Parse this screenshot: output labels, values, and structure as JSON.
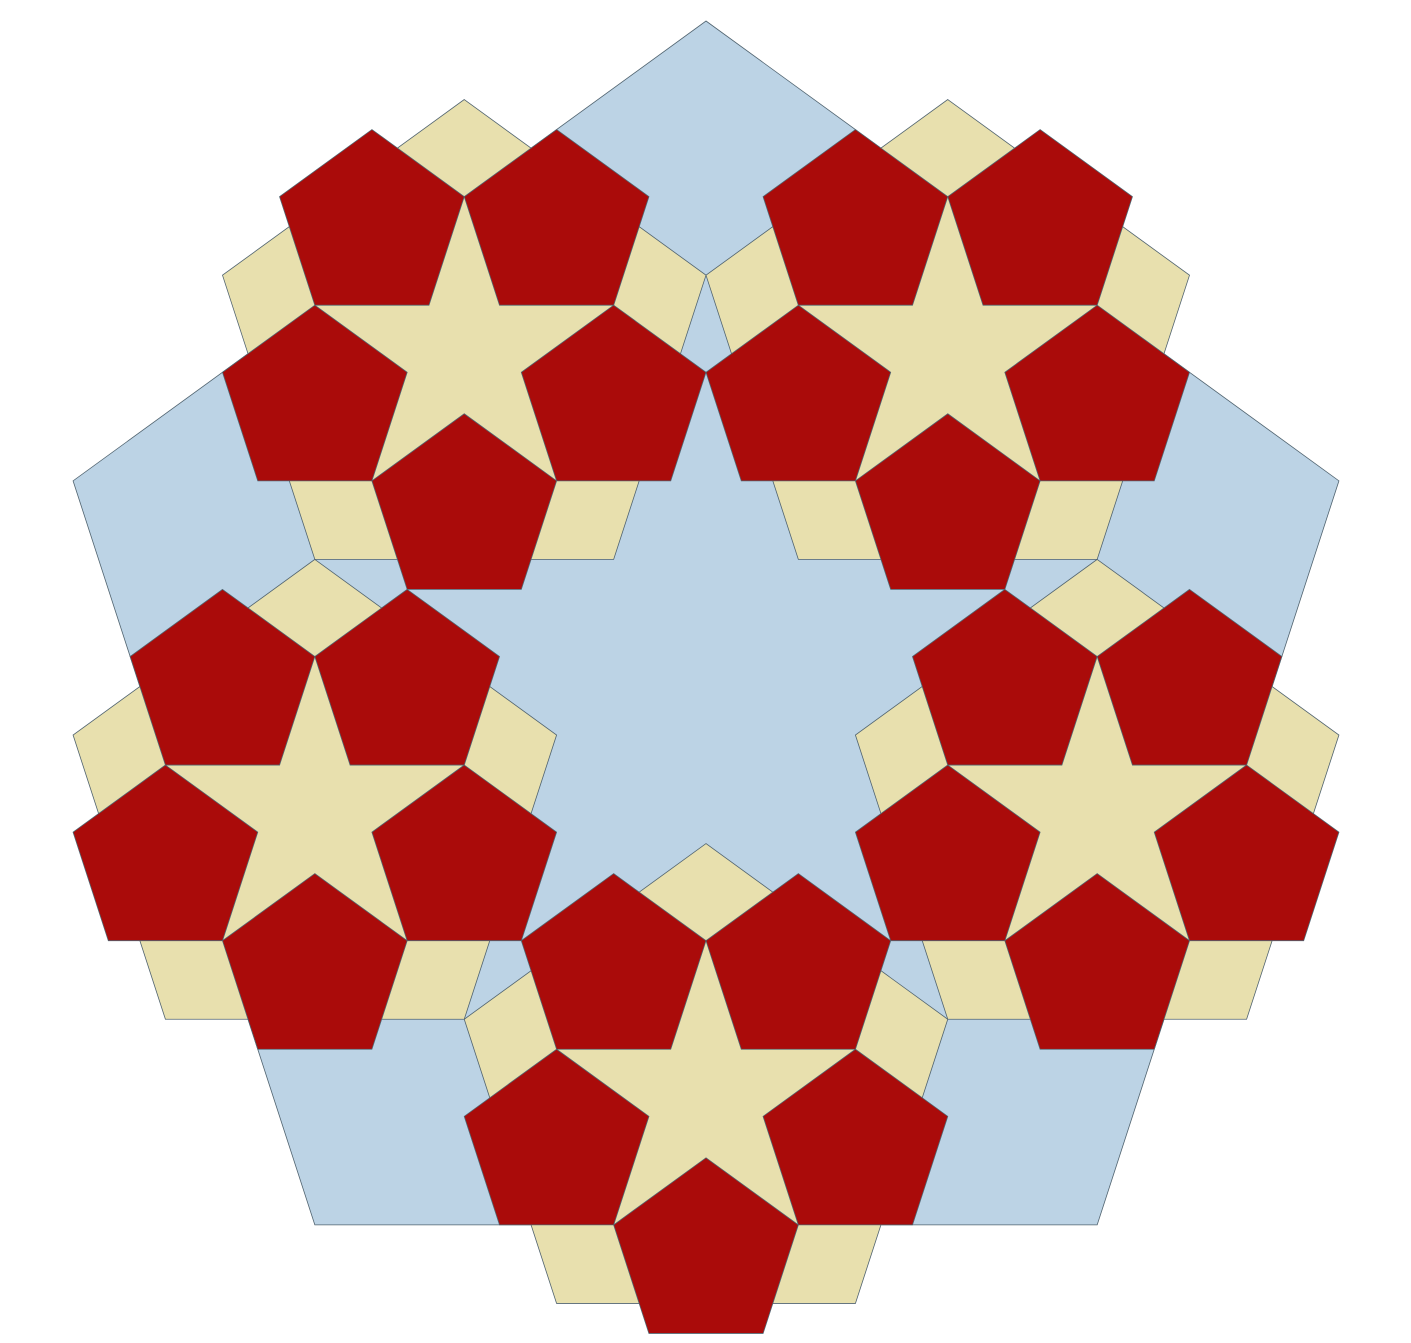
{
  "figure": {
    "type": "pentagon-flake",
    "recursion_depth": 2,
    "colors": {
      "background": "#ffffff",
      "outer_fill": "#bcd3e5",
      "inner_fill": "#e8e0ae",
      "core_fill": "#aa0b0a",
      "stroke": "#50636f"
    }
  }
}
